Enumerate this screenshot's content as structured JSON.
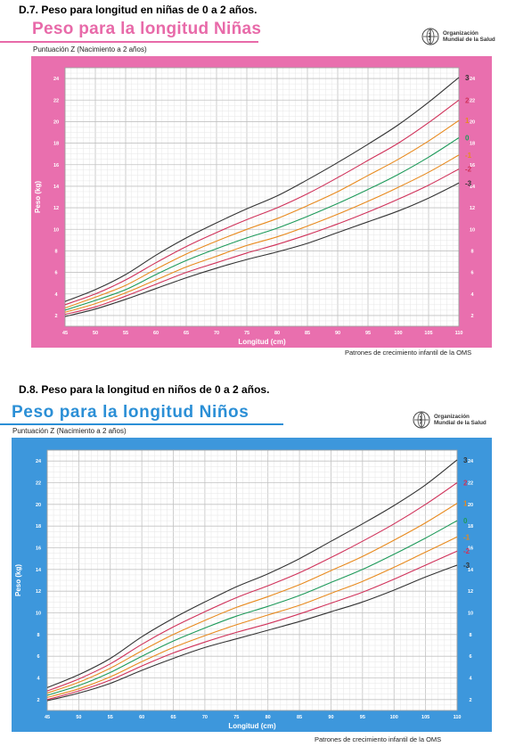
{
  "girls": {
    "section_label": "D.7. Peso para longitud en niñas de 0 a 2 años.",
    "title": "Peso para la longitud Niñas",
    "subtitle": "Puntuación Z  (Nacimiento a 2 años)",
    "org_line1": "Organización",
    "org_line2": "Mundial de la Salud",
    "footer": "Patrones de crecimiento infantil de la OMS",
    "colors": {
      "frame": "#e96fae",
      "title": "#e86aa9"
    }
  },
  "boys": {
    "section_label": "D.8. Peso para la longitud en niños de 0 a 2 años.",
    "title": "Peso para la longitud Niños",
    "subtitle": "Puntuación Z (Nacimiento a 2 años)",
    "org_line1": "Organización",
    "org_line2": "Mundial de la Salud",
    "footer": "Patrones de crecimiento infantil de la OMS",
    "colors": {
      "frame": "#3d97dc",
      "title": "#2b8fd6"
    }
  },
  "chart_data": [
    {
      "type": "line",
      "xlabel": "Longitud (cm)",
      "ylabel": "Peso (kg)",
      "xlim": [
        45,
        110
      ],
      "ylim": [
        1,
        25
      ],
      "x_ticks": [
        45,
        50,
        55,
        60,
        65,
        70,
        75,
        80,
        85,
        90,
        95,
        100,
        105,
        110
      ],
      "y_ticks": [
        2,
        4,
        6,
        8,
        10,
        12,
        14,
        16,
        18,
        20,
        22,
        24
      ],
      "grid": true,
      "x": [
        45,
        50,
        55,
        60,
        65,
        70,
        75,
        80,
        85,
        90,
        95,
        100,
        105,
        110
      ],
      "series": [
        {
          "name": "3",
          "color": "#333333",
          "values": [
            3.3,
            4.4,
            5.8,
            7.6,
            9.2,
            10.6,
            11.9,
            13.1,
            14.6,
            16.2,
            17.9,
            19.7,
            21.8,
            24.1
          ]
        },
        {
          "name": "2",
          "color": "#d0325a",
          "values": [
            3.0,
            4.0,
            5.3,
            6.9,
            8.4,
            9.7,
            10.9,
            12.0,
            13.3,
            14.8,
            16.4,
            18.0,
            19.9,
            22.0
          ]
        },
        {
          "name": "1",
          "color": "#e88a1e",
          "values": [
            2.7,
            3.7,
            4.8,
            6.3,
            7.7,
            8.9,
            10.0,
            11.0,
            12.2,
            13.5,
            15.0,
            16.5,
            18.2,
            20.1
          ]
        },
        {
          "name": "0",
          "color": "#1e9a5a",
          "values": [
            2.5,
            3.4,
            4.4,
            5.8,
            7.1,
            8.2,
            9.2,
            10.1,
            11.2,
            12.4,
            13.7,
            15.1,
            16.7,
            18.5
          ]
        },
        {
          "name": "-1",
          "color": "#e88a1e",
          "values": [
            2.3,
            3.1,
            4.1,
            5.3,
            6.5,
            7.5,
            8.5,
            9.3,
            10.3,
            11.4,
            12.6,
            13.9,
            15.3,
            16.9
          ]
        },
        {
          "name": "-2",
          "color": "#d0325a",
          "values": [
            2.1,
            2.8,
            3.8,
            4.9,
            6.0,
            6.9,
            7.8,
            8.6,
            9.5,
            10.5,
            11.6,
            12.8,
            14.1,
            15.6
          ]
        },
        {
          "name": "-3",
          "color": "#333333",
          "values": [
            1.9,
            2.6,
            3.5,
            4.5,
            5.5,
            6.4,
            7.2,
            7.9,
            8.7,
            9.7,
            10.7,
            11.7,
            12.9,
            14.3
          ]
        }
      ]
    },
    {
      "type": "line",
      "xlabel": "Longitud (cm)",
      "ylabel": "Peso (kg)",
      "xlim": [
        45,
        110
      ],
      "ylim": [
        1,
        25
      ],
      "x_ticks": [
        45,
        50,
        55,
        60,
        65,
        70,
        75,
        80,
        85,
        90,
        95,
        100,
        105,
        110
      ],
      "y_ticks": [
        2,
        4,
        6,
        8,
        10,
        12,
        14,
        16,
        18,
        20,
        22,
        24
      ],
      "grid": true,
      "x": [
        45,
        50,
        55,
        60,
        65,
        70,
        75,
        80,
        85,
        90,
        95,
        100,
        105,
        110
      ],
      "series": [
        {
          "name": "3",
          "color": "#333333",
          "values": [
            3.1,
            4.3,
            5.8,
            7.8,
            9.5,
            11.0,
            12.4,
            13.6,
            15.0,
            16.6,
            18.2,
            19.9,
            21.8,
            24.1
          ]
        },
        {
          "name": "2",
          "color": "#d0325a",
          "values": [
            2.8,
            3.9,
            5.3,
            7.1,
            8.7,
            10.1,
            11.4,
            12.5,
            13.7,
            15.1,
            16.6,
            18.2,
            20.0,
            22.0
          ]
        },
        {
          "name": "1",
          "color": "#e88a1e",
          "values": [
            2.6,
            3.6,
            4.9,
            6.5,
            8.0,
            9.3,
            10.5,
            11.5,
            12.6,
            13.9,
            15.2,
            16.7,
            18.3,
            20.1
          ]
        },
        {
          "name": "0",
          "color": "#1e9a5a",
          "values": [
            2.4,
            3.3,
            4.5,
            6.0,
            7.4,
            8.6,
            9.7,
            10.6,
            11.6,
            12.8,
            14.0,
            15.4,
            16.9,
            18.5
          ]
        },
        {
          "name": "-1",
          "color": "#e88a1e",
          "values": [
            2.2,
            3.0,
            4.1,
            5.5,
            6.8,
            7.9,
            8.9,
            9.8,
            10.7,
            11.8,
            12.9,
            14.2,
            15.6,
            17.0
          ]
        },
        {
          "name": "-2",
          "color": "#d0325a",
          "values": [
            2.0,
            2.8,
            3.8,
            5.1,
            6.3,
            7.3,
            8.2,
            9.0,
            9.9,
            10.9,
            11.9,
            13.1,
            14.4,
            15.7
          ]
        },
        {
          "name": "-3",
          "color": "#333333",
          "values": [
            1.9,
            2.6,
            3.5,
            4.7,
            5.8,
            6.8,
            7.6,
            8.4,
            9.2,
            10.1,
            11.0,
            12.1,
            13.3,
            14.4
          ]
        }
      ]
    }
  ]
}
